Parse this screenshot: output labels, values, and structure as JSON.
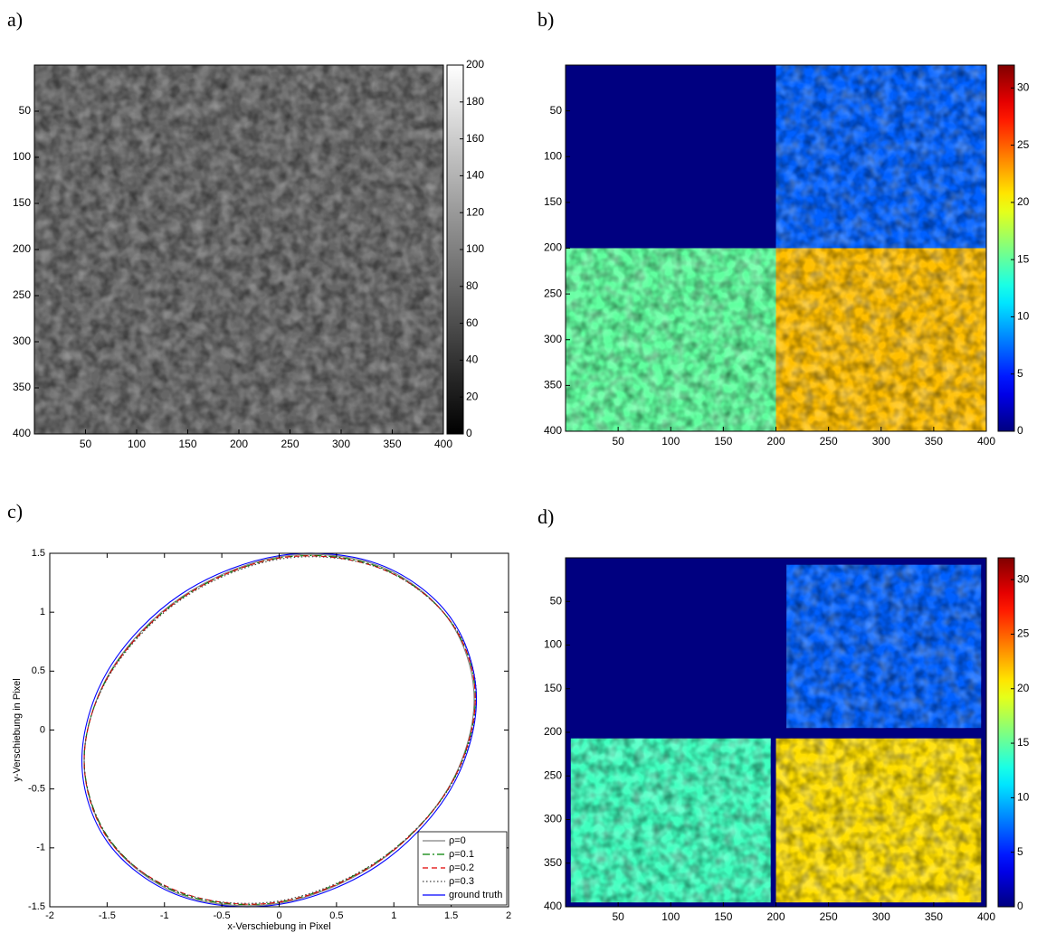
{
  "chart_data": [
    {
      "type": "heatmap",
      "label": "a)",
      "colormap": "gray",
      "yreverse": true,
      "xlim": [
        0,
        400
      ],
      "ylim": [
        0,
        400
      ],
      "xticks": [
        50,
        100,
        150,
        200,
        250,
        300,
        350,
        400
      ],
      "yticks": [
        50,
        100,
        150,
        200,
        250,
        300,
        350,
        400
      ],
      "clim": [
        0,
        200
      ],
      "cticks": [
        0,
        20,
        40,
        60,
        80,
        100,
        120,
        140,
        160,
        180,
        200
      ],
      "cells": [
        {
          "x": [
            0,
            400
          ],
          "y": [
            0,
            400
          ],
          "value": 80
        }
      ]
    },
    {
      "type": "heatmap",
      "label": "b)",
      "colormap": "jet",
      "yreverse": true,
      "xlim": [
        0,
        400
      ],
      "ylim": [
        0,
        400
      ],
      "xticks": [
        50,
        100,
        150,
        200,
        250,
        300,
        350,
        400
      ],
      "yticks": [
        50,
        100,
        150,
        200,
        250,
        300,
        350,
        400
      ],
      "clim": [
        0,
        32
      ],
      "cticks": [
        0,
        5,
        10,
        15,
        20,
        25,
        30
      ],
      "cells": [
        {
          "x": [
            0,
            200
          ],
          "y": [
            0,
            200
          ],
          "value": 0
        },
        {
          "x": [
            200,
            400
          ],
          "y": [
            0,
            200
          ],
          "value": 7
        },
        {
          "x": [
            0,
            200
          ],
          "y": [
            200,
            400
          ],
          "value": 15
        },
        {
          "x": [
            200,
            400
          ],
          "y": [
            200,
            400
          ],
          "value": 22
        }
      ]
    },
    {
      "type": "line",
      "label": "c)",
      "xlabel": "x-Verschiebung in Pixel",
      "ylabel": "y-Verschiebung in Pixel",
      "xlim": [
        -2,
        2
      ],
      "ylim": [
        -1.5,
        1.5
      ],
      "xticks": [
        -2,
        -1.5,
        -1,
        -0.5,
        0,
        0.5,
        1,
        1.5,
        2
      ],
      "yticks": [
        -1.5,
        -1,
        -0.5,
        0,
        0.5,
        1,
        1.5
      ],
      "legend": "lower right",
      "series": [
        {
          "name": "ρ=0",
          "color": "#808080",
          "dash": "solid",
          "x": [
            1.7,
            1.47,
            0.85,
            0,
            -0.85,
            -1.47,
            -1.7,
            -1.47,
            -0.85,
            0,
            0.85,
            1.47,
            1.7
          ],
          "y": [
            0.26,
            0.95,
            1.4,
            1.47,
            1.13,
            0.5,
            -0.26,
            -0.95,
            -1.4,
            -1.47,
            -1.13,
            -0.5,
            0.26
          ]
        },
        {
          "name": "ρ=0.1",
          "color": "#008000",
          "dash": "dashdot",
          "x": [
            1.71,
            1.48,
            0.85,
            0,
            -0.85,
            -1.47,
            -1.7,
            -1.47,
            -0.85,
            0,
            0.85,
            1.48,
            1.71
          ],
          "y": [
            0.27,
            0.94,
            1.39,
            1.46,
            1.12,
            0.49,
            -0.25,
            -0.94,
            -1.39,
            -1.46,
            -1.12,
            -0.49,
            0.27
          ]
        },
        {
          "name": "ρ=0.2",
          "color": "#e00000",
          "dash": "dashed",
          "x": [
            1.71,
            1.48,
            0.86,
            0,
            -0.85,
            -1.47,
            -1.7,
            -1.48,
            -0.85,
            0,
            0.86,
            1.48,
            1.71
          ],
          "y": [
            0.27,
            0.94,
            1.38,
            1.46,
            1.12,
            0.49,
            -0.25,
            -0.94,
            -1.38,
            -1.46,
            -1.12,
            -0.49,
            0.27
          ]
        },
        {
          "name": "ρ=0.3",
          "color": "#404040",
          "dash": "dotted",
          "x": [
            1.72,
            1.49,
            0.86,
            0,
            -0.85,
            -1.47,
            -1.7,
            -1.48,
            -0.86,
            0,
            0.86,
            1.49,
            1.72
          ],
          "y": [
            0.28,
            0.93,
            1.38,
            1.45,
            1.11,
            0.48,
            -0.24,
            -0.93,
            -1.38,
            -1.45,
            -1.11,
            -0.48,
            0.28
          ]
        },
        {
          "name": "ground truth",
          "color": "#0000ff",
          "dash": "solid",
          "x": [
            1.72,
            1.49,
            0.86,
            0,
            -0.86,
            -1.49,
            -1.72,
            -1.49,
            -0.86,
            0,
            0.86,
            1.49,
            1.72
          ],
          "y": [
            0.26,
            0.96,
            1.41,
            1.48,
            1.15,
            0.51,
            -0.26,
            -0.96,
            -1.41,
            -1.48,
            -1.15,
            -0.51,
            0.26
          ]
        }
      ]
    },
    {
      "type": "heatmap",
      "label": "d)",
      "colormap": "jet",
      "yreverse": true,
      "xlim": [
        0,
        400
      ],
      "ylim": [
        0,
        400
      ],
      "xticks": [
        50,
        100,
        150,
        200,
        250,
        300,
        350,
        400
      ],
      "yticks": [
        50,
        100,
        150,
        200,
        250,
        300,
        350,
        400
      ],
      "clim": [
        0,
        32
      ],
      "cticks": [
        0,
        5,
        10,
        15,
        20,
        25,
        30
      ],
      "cells": [
        {
          "x": [
            0,
            400
          ],
          "y": [
            0,
            400
          ],
          "value": 0
        },
        {
          "x": [
            210,
            395
          ],
          "y": [
            8,
            195
          ],
          "value": 7
        },
        {
          "x": [
            5,
            195
          ],
          "y": [
            207,
            395
          ],
          "value": 14
        },
        {
          "x": [
            200,
            395
          ],
          "y": [
            207,
            395
          ],
          "value": 21
        }
      ]
    }
  ]
}
